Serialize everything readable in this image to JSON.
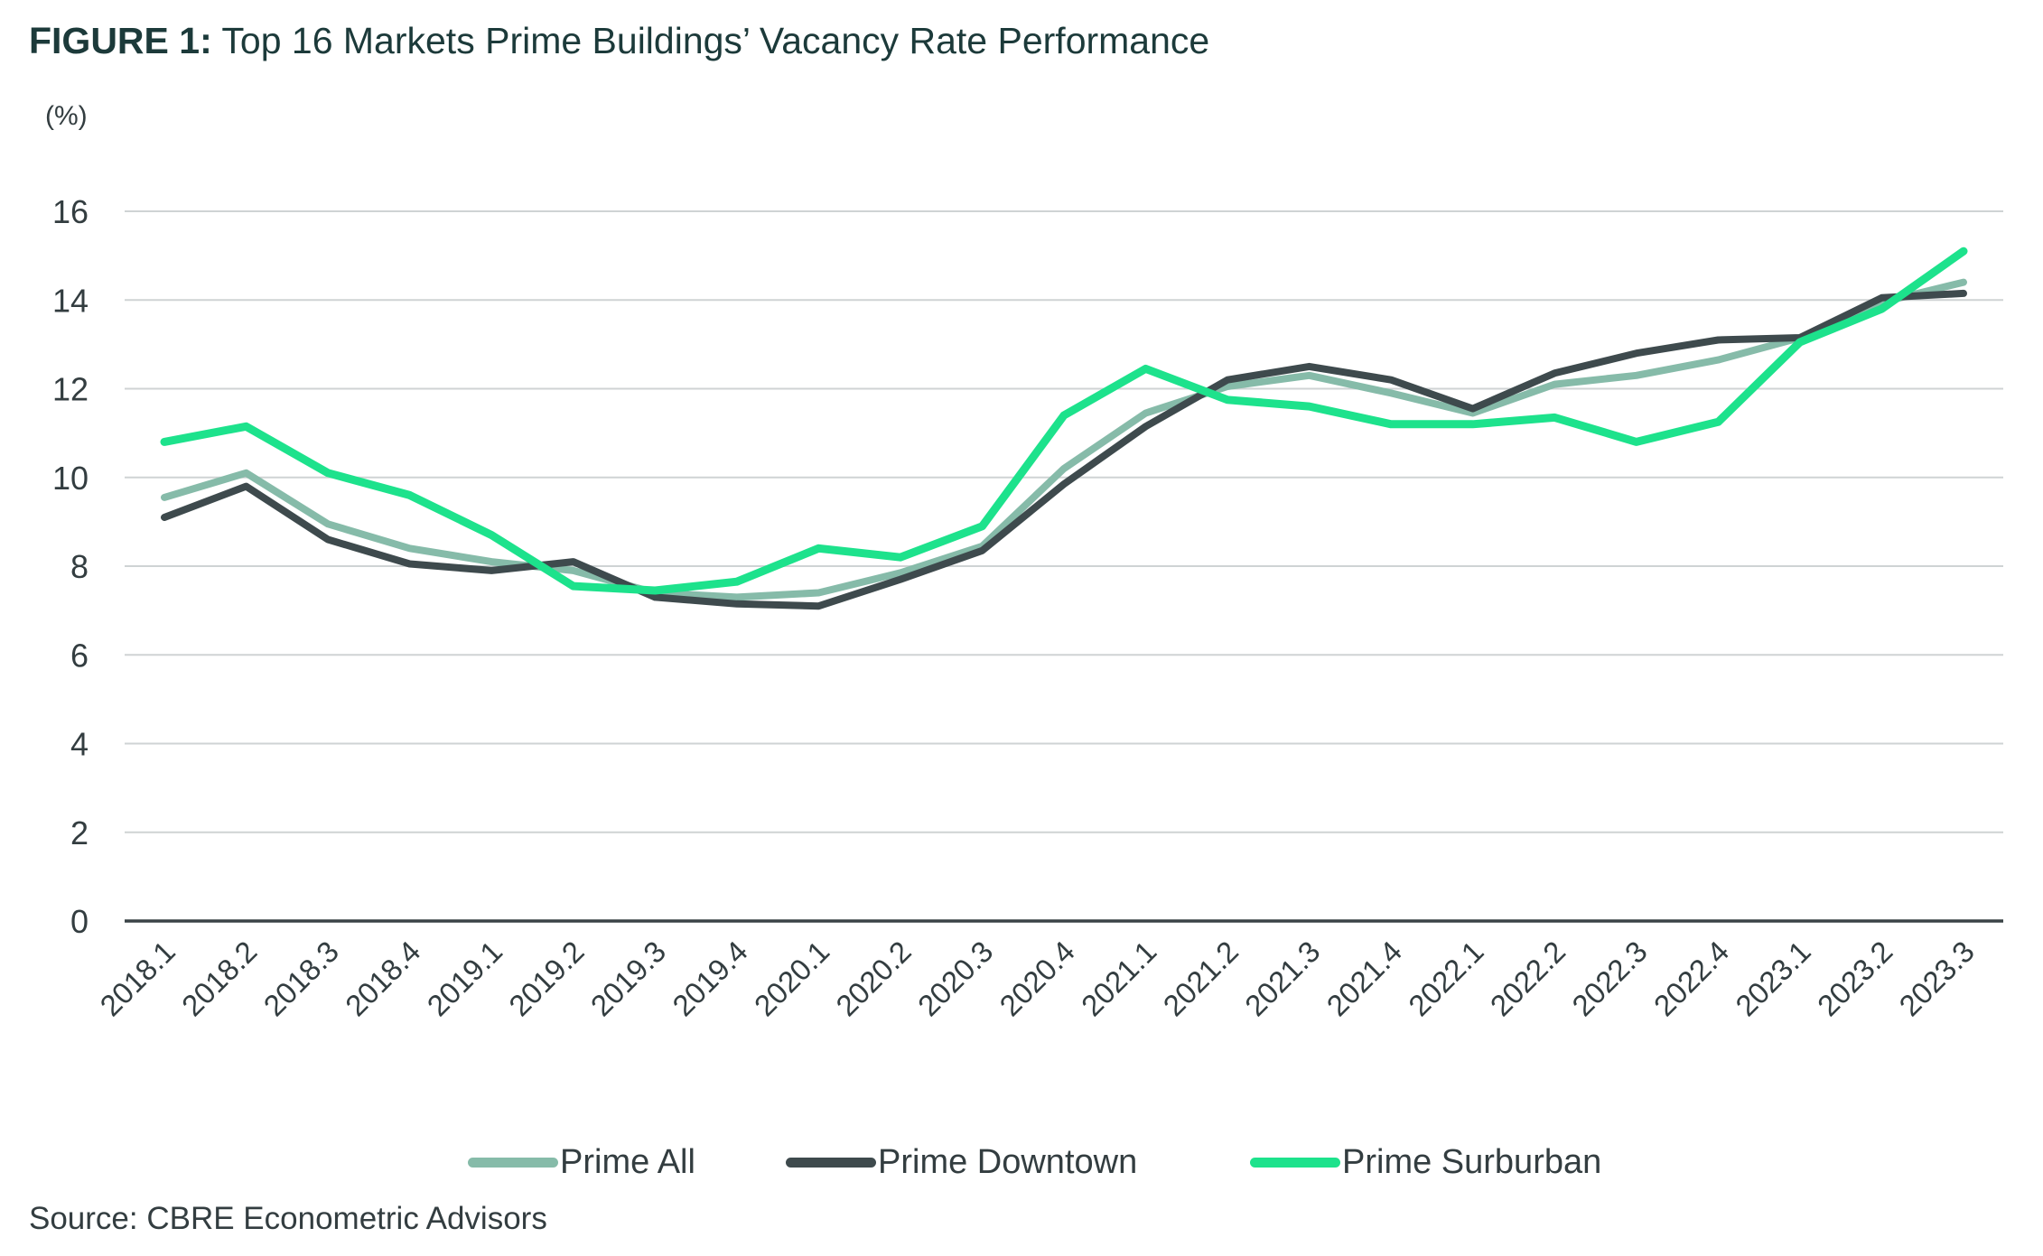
{
  "title": {
    "prefix": "FIGURE 1:",
    "text": "Top 16 Markets Prime Buildings’ Vacancy Rate Performance"
  },
  "source": "Source: CBRE Econometric Advisors",
  "chart_data": {
    "type": "line",
    "title": "FIGURE 1: Top 16 Markets Prime Buildings’ Vacancy Rate Performance",
    "ylabel": "(%)",
    "xlabel": "",
    "ylim": [
      0,
      16
    ],
    "yticks": [
      0,
      2,
      4,
      6,
      8,
      10,
      12,
      14,
      16
    ],
    "grid": true,
    "legend_position": "bottom",
    "categories": [
      "2018.1",
      "2018.2",
      "2018.3",
      "2018.4",
      "2019.1",
      "2019.2",
      "2019.3",
      "2019.4",
      "2020.1",
      "2020.2",
      "2020.3",
      "2020.4",
      "2021.1",
      "2021.2",
      "2021.3",
      "2021.4",
      "2022.1",
      "2022.2",
      "2022.3",
      "2022.4",
      "2023.1",
      "2023.2",
      "2023.3"
    ],
    "series": [
      {
        "name": "Prime All",
        "color": "#86bba9",
        "values": [
          9.55,
          10.1,
          8.95,
          8.4,
          8.1,
          7.9,
          7.4,
          7.3,
          7.4,
          7.85,
          8.45,
          10.2,
          11.45,
          12.05,
          12.3,
          11.9,
          11.45,
          12.1,
          12.3,
          12.65,
          13.15,
          13.95,
          14.4
        ]
      },
      {
        "name": "Prime Downtown",
        "color": "#3e4a4d",
        "values": [
          9.1,
          9.8,
          8.6,
          8.05,
          7.9,
          8.1,
          7.3,
          7.15,
          7.1,
          7.7,
          8.35,
          9.85,
          11.15,
          12.2,
          12.5,
          12.2,
          11.55,
          12.35,
          12.8,
          13.1,
          13.15,
          14.05,
          14.15
        ]
      },
      {
        "name": "Prime Surburban",
        "color": "#1de28c",
        "values": [
          10.8,
          11.15,
          10.1,
          9.6,
          8.7,
          7.55,
          7.45,
          7.65,
          8.4,
          8.2,
          8.9,
          11.4,
          12.45,
          11.75,
          11.6,
          11.2,
          11.2,
          11.35,
          10.8,
          11.25,
          13.05,
          13.8,
          15.1
        ]
      }
    ]
  }
}
